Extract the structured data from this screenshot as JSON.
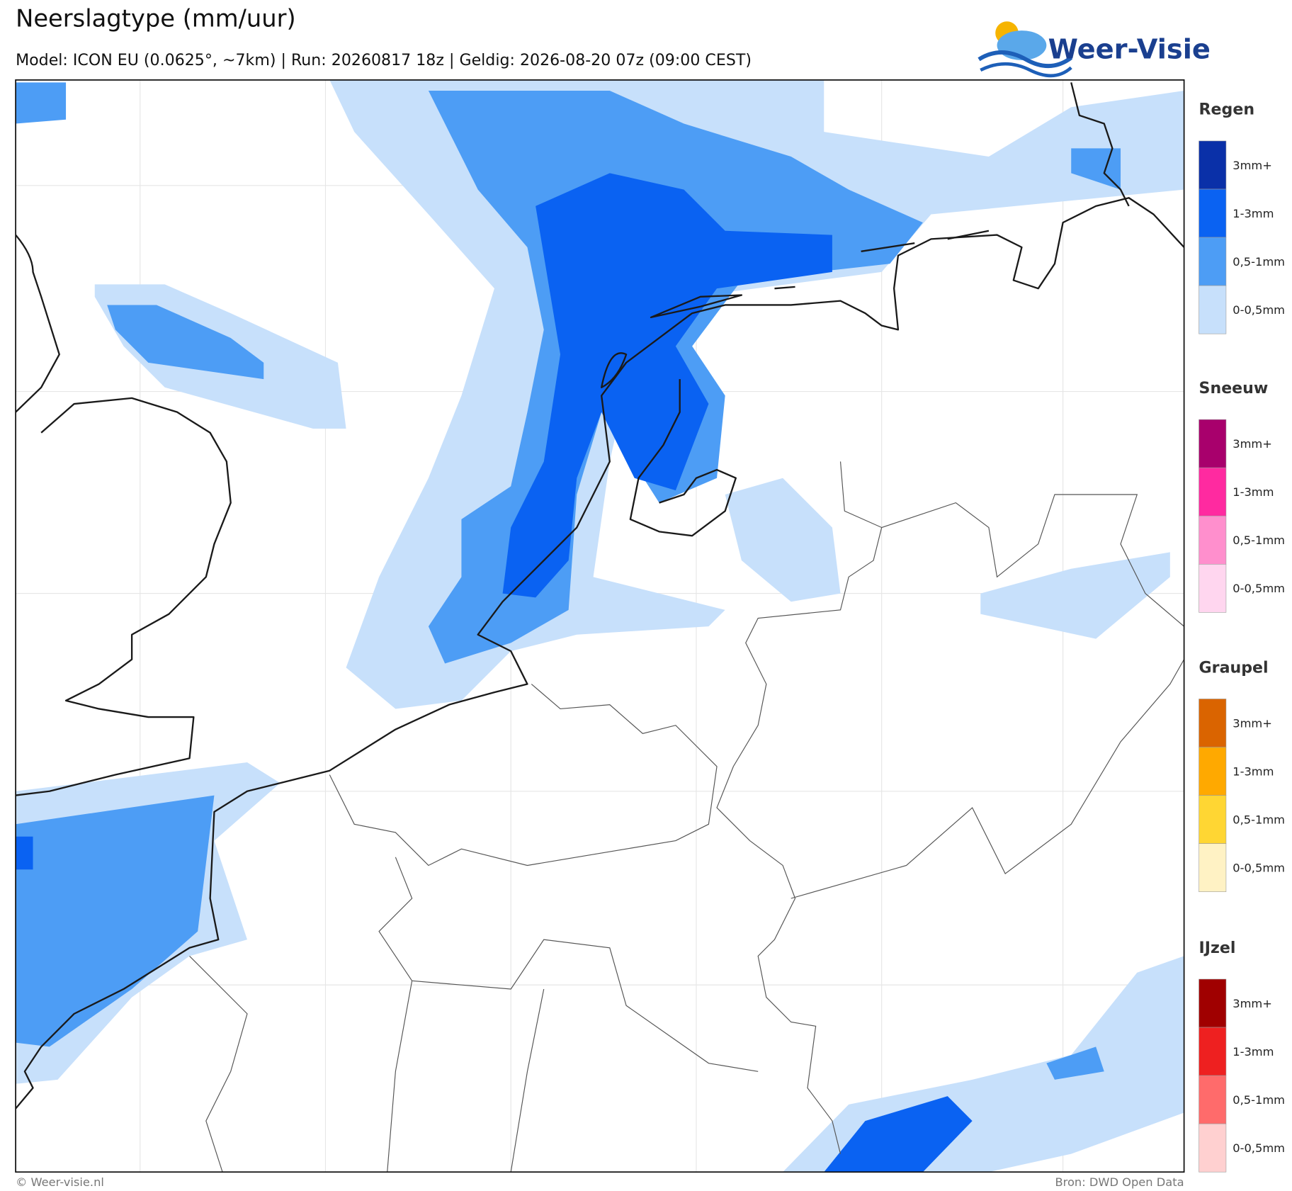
{
  "header": {
    "title": "Neerslagtype (mm/uur)",
    "subtitle": "Model: ICON EU (0.0625°, ~7km)  |  Run: 20260817 18z  |  Geldig: 2026-08-20 07z (09:00 CEST)",
    "logo": "Weer-Visie"
  },
  "legend": [
    {
      "name": "Regen",
      "items": [
        {
          "label": "3mm+",
          "color": "#0a30a8"
        },
        {
          "label": "1-3mm",
          "color": "#0a62f2"
        },
        {
          "label": "0,5-1mm",
          "color": "#4d9df5"
        },
        {
          "label": "0-0,5mm",
          "color": "#c7e0fb"
        }
      ]
    },
    {
      "name": "Sneeuw",
      "items": [
        {
          "label": "3mm+",
          "color": "#a8006c"
        },
        {
          "label": "1-3mm",
          "color": "#ff2aa0"
        },
        {
          "label": "0,5-1mm",
          "color": "#ff8fcd"
        },
        {
          "label": "0-0,5mm",
          "color": "#ffd6ef"
        }
      ]
    },
    {
      "name": "Graupel",
      "items": [
        {
          "label": "3mm+",
          "color": "#da6400"
        },
        {
          "label": "1-3mm",
          "color": "#ffa900"
        },
        {
          "label": "0,5-1mm",
          "color": "#ffd633"
        },
        {
          "label": "0-0,5mm",
          "color": "#fff2c4"
        }
      ]
    },
    {
      "name": "IJzel",
      "items": [
        {
          "label": "3mm+",
          "color": "#a00000"
        },
        {
          "label": "1-3mm",
          "color": "#ee2020"
        },
        {
          "label": "0,5-1mm",
          "color": "#ff6b6b"
        },
        {
          "label": "0-0,5mm",
          "color": "#ffd0d0"
        }
      ]
    }
  ],
  "footer": {
    "left": "© Weer-visie.nl",
    "right": "Bron: DWD Open Data"
  }
}
